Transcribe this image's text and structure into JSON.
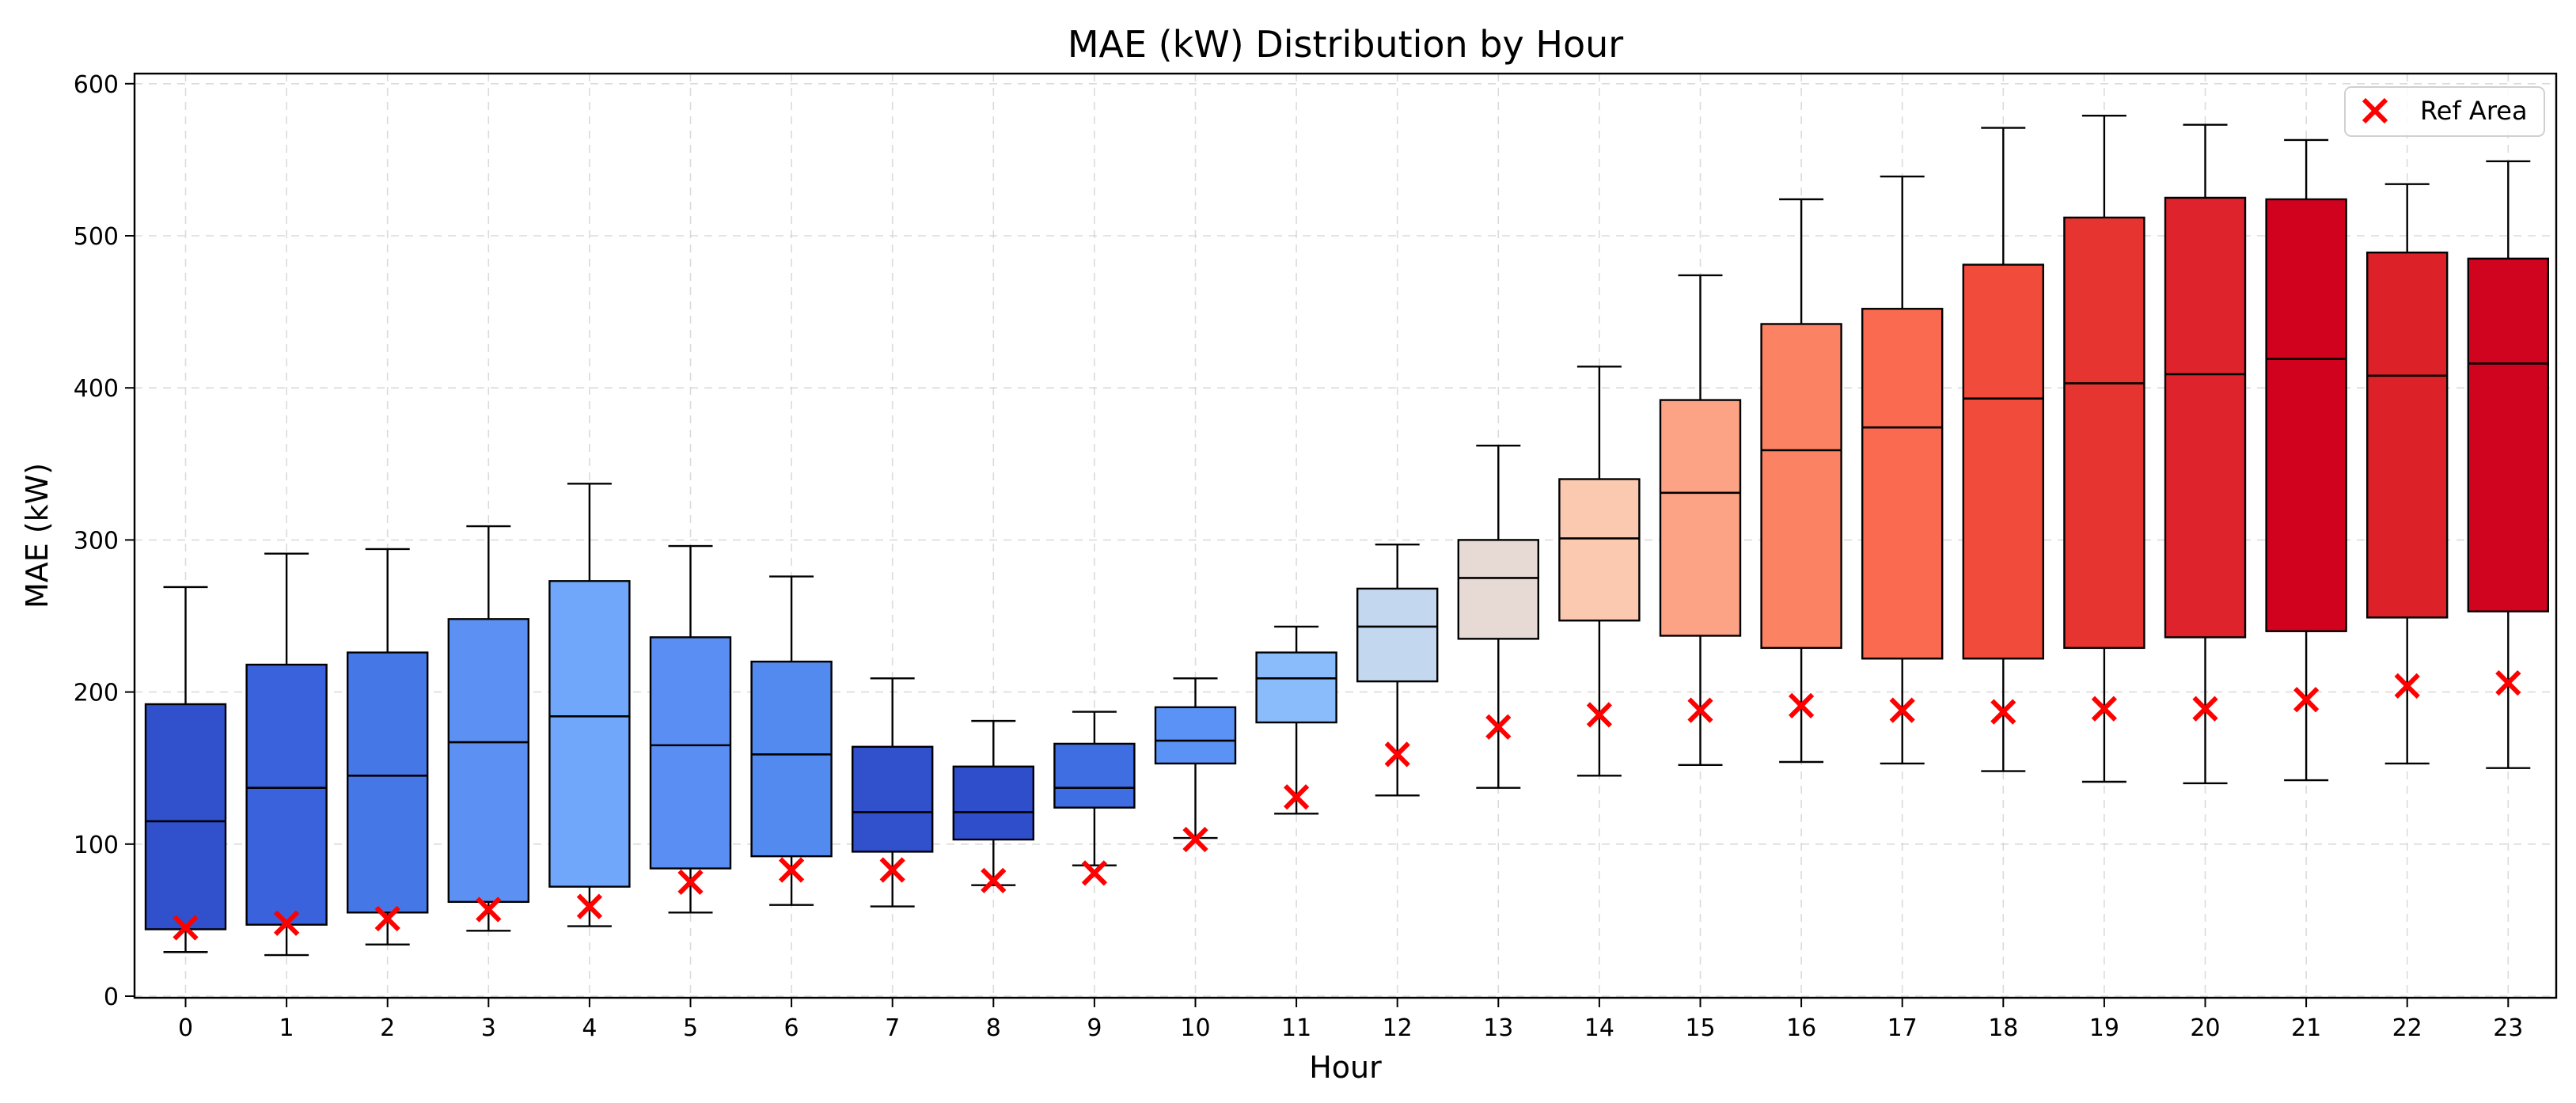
{
  "chart_data": {
    "type": "box",
    "title": "MAE (kW) Distribution by Hour",
    "xlabel": "Hour",
    "ylabel": "MAE (kW)",
    "ylim": [
      0,
      605
    ],
    "yticks": [
      0,
      100,
      200,
      300,
      400,
      500,
      600
    ],
    "grid": true,
    "legend_placement": "top-right",
    "legend": [
      {
        "label": "Ref Area",
        "marker": "x",
        "color": "#ff0000"
      }
    ],
    "categories": [
      "0",
      "1",
      "2",
      "3",
      "4",
      "5",
      "6",
      "7",
      "8",
      "9",
      "10",
      "11",
      "12",
      "13",
      "14",
      "15",
      "16",
      "17",
      "18",
      "19",
      "20",
      "21",
      "22",
      "23"
    ],
    "boxes": [
      {
        "hour": "0",
        "whisker_low": 29,
        "q1": 44,
        "median": 115,
        "q3": 192,
        "whisker_high": 269,
        "ref": 45,
        "color": "#3050cc"
      },
      {
        "hour": "1",
        "whisker_low": 27,
        "q1": 47,
        "median": 137,
        "q3": 218,
        "whisker_high": 291,
        "ref": 48,
        "color": "#3a62dc"
      },
      {
        "hour": "2",
        "whisker_low": 34,
        "q1": 55,
        "median": 145,
        "q3": 226,
        "whisker_high": 294,
        "ref": 51,
        "color": "#4677e6"
      },
      {
        "hour": "3",
        "whisker_low": 43,
        "q1": 62,
        "median": 167,
        "q3": 248,
        "whisker_high": 309,
        "ref": 57,
        "color": "#5c90f2"
      },
      {
        "hour": "4",
        "whisker_low": 46,
        "q1": 72,
        "median": 184,
        "q3": 273,
        "whisker_high": 337,
        "ref": 59,
        "color": "#70a7fb"
      },
      {
        "hour": "5",
        "whisker_low": 55,
        "q1": 84,
        "median": 165,
        "q3": 236,
        "whisker_high": 296,
        "ref": 75,
        "color": "#5a8ef2"
      },
      {
        "hour": "6",
        "whisker_low": 60,
        "q1": 92,
        "median": 159,
        "q3": 220,
        "whisker_high": 276,
        "ref": 83,
        "color": "#528af0"
      },
      {
        "hour": "7",
        "whisker_low": 59,
        "q1": 95,
        "median": 121,
        "q3": 164,
        "whisker_high": 209,
        "ref": 83,
        "color": "#3050cc"
      },
      {
        "hour": "8",
        "whisker_low": 73,
        "q1": 103,
        "median": 121,
        "q3": 151,
        "whisker_high": 181,
        "ref": 76,
        "color": "#2f4ecb"
      },
      {
        "hour": "9",
        "whisker_low": 86,
        "q1": 124,
        "median": 137,
        "q3": 166,
        "whisker_high": 187,
        "ref": 81,
        "color": "#3f6ee2"
      },
      {
        "hour": "10",
        "whisker_low": 104,
        "q1": 153,
        "median": 168,
        "q3": 190,
        "whisker_high": 209,
        "ref": 103,
        "color": "#5a93f5"
      },
      {
        "hour": "11",
        "whisker_low": 120,
        "q1": 180,
        "median": 209,
        "q3": 226,
        "whisker_high": 243,
        "ref": 131,
        "color": "#8abbfb"
      },
      {
        "hour": "12",
        "whisker_low": 132,
        "q1": 207,
        "median": 243,
        "q3": 268,
        "whisker_high": 297,
        "ref": 159,
        "color": "#c3d7ef"
      },
      {
        "hour": "13",
        "whisker_low": 137,
        "q1": 235,
        "median": 275,
        "q3": 300,
        "whisker_high": 362,
        "ref": 177,
        "color": "#e7d9d4"
      },
      {
        "hour": "14",
        "whisker_low": 145,
        "q1": 247,
        "median": 301,
        "q3": 340,
        "whisker_high": 414,
        "ref": 185,
        "color": "#fbc9b0"
      },
      {
        "hour": "15",
        "whisker_low": 152,
        "q1": 237,
        "median": 331,
        "q3": 392,
        "whisker_high": 474,
        "ref": 188,
        "color": "#fca386"
      },
      {
        "hour": "16",
        "whisker_low": 154,
        "q1": 229,
        "median": 359,
        "q3": 442,
        "whisker_high": 524,
        "ref": 191,
        "color": "#fc8264"
      },
      {
        "hour": "17",
        "whisker_low": 153,
        "q1": 222,
        "median": 374,
        "q3": 452,
        "whisker_high": 539,
        "ref": 188,
        "color": "#f96a50"
      },
      {
        "hour": "18",
        "whisker_low": 148,
        "q1": 222,
        "median": 393,
        "q3": 481,
        "whisker_high": 571,
        "ref": 187,
        "color": "#f04b3b"
      },
      {
        "hour": "19",
        "whisker_low": 141,
        "q1": 229,
        "median": 403,
        "q3": 512,
        "whisker_high": 579,
        "ref": 189,
        "color": "#e63531"
      },
      {
        "hour": "20",
        "whisker_low": 140,
        "q1": 236,
        "median": 409,
        "q3": 525,
        "whisker_high": 573,
        "ref": 189,
        "color": "#df232c"
      },
      {
        "hour": "21",
        "whisker_low": 142,
        "q1": 240,
        "median": 419,
        "q3": 524,
        "whisker_high": 563,
        "ref": 195,
        "color": "#d0021e"
      },
      {
        "hour": "22",
        "whisker_low": 153,
        "q1": 249,
        "median": 408,
        "q3": 489,
        "whisker_high": 534,
        "ref": 204,
        "color": "#dc2228"
      },
      {
        "hour": "23",
        "whisker_low": 150,
        "q1": 253,
        "median": 416,
        "q3": 485,
        "whisker_high": 549,
        "ref": 206,
        "color": "#d0041f"
      }
    ]
  }
}
